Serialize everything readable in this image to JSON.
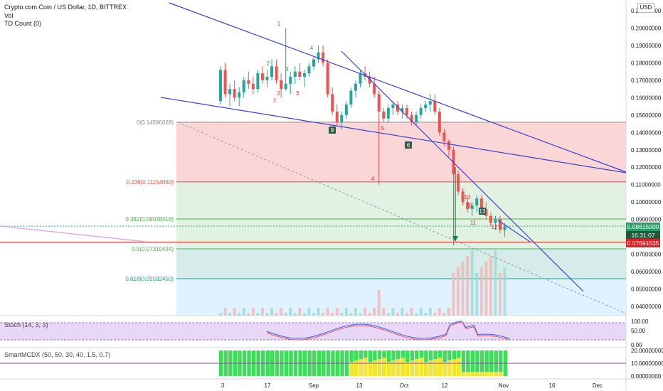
{
  "header": {
    "title": "Crypto.com Coin / US Dollar, 1D, BITTREX",
    "vol_label": "Vol",
    "td_label": "TD Count (0)"
  },
  "currency_badge": "USD",
  "price_axis": {
    "ticks": [
      "0.21000000",
      "0.20000000",
      "0.19000000",
      "0.18000000",
      "0.17000000",
      "0.16000000",
      "0.15000000",
      "0.14000000",
      "0.13000000",
      "0.12000000",
      "0.11000000",
      "0.10000000",
      "0.09000000",
      "0.07000000",
      "0.06000000",
      "0.05000000",
      "0.04000000"
    ],
    "tick_values": [
      0.21,
      0.2,
      0.19,
      0.18,
      0.17,
      0.16,
      0.15,
      0.14,
      0.13,
      0.12,
      0.11,
      0.1,
      0.09,
      0.07,
      0.06,
      0.05,
      0.04
    ],
    "current_price": "0.08615000",
    "countdown": "16:31:07",
    "alert_price": "0.07691535"
  },
  "time_axis": {
    "labels": [
      "3",
      "17",
      "Sep",
      "13",
      "Oct",
      "12",
      "Nov",
      "16",
      "Dec"
    ]
  },
  "fib_levels": [
    {
      "label": "0(0.14590028)",
      "value": 0.14590028
    },
    {
      "label": "0.236(0.11154060)",
      "value": 0.1115406
    },
    {
      "label": "0.382(0.09028418)",
      "value": 0.09028418
    },
    {
      "label": "0.5(0.07310434)",
      "value": 0.07310434
    },
    {
      "label": "0.618(0.05592450)",
      "value": 0.0559245
    }
  ],
  "td_marks": [
    {
      "text": "1",
      "color": "green"
    },
    {
      "text": "2",
      "color": "green"
    },
    {
      "text": "3",
      "color": "green"
    },
    {
      "text": "4",
      "color": "green"
    },
    {
      "text": "1",
      "color": "red"
    },
    {
      "text": "2",
      "color": "red"
    },
    {
      "text": "3",
      "color": "red"
    },
    {
      "text": "4",
      "color": "red"
    },
    {
      "text": "5",
      "color": "red"
    },
    {
      "text": "6",
      "color": "dark"
    },
    {
      "text": "9",
      "color": "dark"
    },
    {
      "text": "8",
      "color": "red"
    },
    {
      "text": "10",
      "color": "red"
    },
    {
      "text": "11",
      "color": "red"
    },
    {
      "text": "12",
      "color": "red"
    },
    {
      "text": "13",
      "color": "dark"
    }
  ],
  "stoch": {
    "label": "Stoch (14, 3, 3)",
    "ticks": [
      "100.00",
      "50.00",
      "0.00"
    ]
  },
  "smartmcdx": {
    "label": "SmartMCDX (50, 50, 30, 40, 1.5, 0.7)",
    "ticks": [
      "20.00000000",
      "10.00000000",
      "0.00000000"
    ]
  },
  "colors": {
    "up": "#26a69a",
    "down": "#ef5350",
    "trendline": "#3f3fd6",
    "fib_red": "#f9d0cf",
    "fib_green": "#dceedd",
    "fib_teal": "#cfe9e6",
    "fib_blue": "#dbeeff",
    "alert": "#e02020"
  },
  "chart_data": {
    "type": "candlestick",
    "period": "1D",
    "ylim": [
      0.034,
      0.215
    ],
    "series": [
      {
        "values": [
          [
            0.158,
            0.178,
            0.156,
            0.176
          ],
          [
            0.176,
            0.18,
            0.16,
            0.162
          ],
          [
            0.162,
            0.168,
            0.155,
            0.165
          ],
          [
            0.165,
            0.17,
            0.158,
            0.16
          ],
          [
            0.16,
            0.166,
            0.155,
            0.163
          ],
          [
            0.163,
            0.172,
            0.16,
            0.17
          ],
          [
            0.17,
            0.175,
            0.165,
            0.168
          ],
          [
            0.168,
            0.172,
            0.162,
            0.165
          ],
          [
            0.165,
            0.176,
            0.163,
            0.174
          ],
          [
            0.174,
            0.178,
            0.168,
            0.17
          ],
          [
            0.17,
            0.176,
            0.166,
            0.172
          ],
          [
            0.172,
            0.182,
            0.17,
            0.178
          ],
          [
            0.178,
            0.182,
            0.168,
            0.17
          ],
          [
            0.17,
            0.174,
            0.16,
            0.165
          ],
          [
            0.165,
            0.2,
            0.164,
            0.168
          ],
          [
            0.168,
            0.175,
            0.162,
            0.172
          ],
          [
            0.172,
            0.178,
            0.168,
            0.175
          ],
          [
            0.175,
            0.18,
            0.17,
            0.172
          ],
          [
            0.172,
            0.176,
            0.166,
            0.174
          ],
          [
            0.174,
            0.18,
            0.172,
            0.178
          ],
          [
            0.178,
            0.184,
            0.176,
            0.182
          ],
          [
            0.182,
            0.19,
            0.18,
            0.186
          ],
          [
            0.186,
            0.19,
            0.178,
            0.18
          ],
          [
            0.18,
            0.182,
            0.16,
            0.162
          ],
          [
            0.162,
            0.166,
            0.15,
            0.152
          ],
          [
            0.152,
            0.156,
            0.144,
            0.146
          ],
          [
            0.146,
            0.152,
            0.142,
            0.15
          ],
          [
            0.15,
            0.158,
            0.148,
            0.156
          ],
          [
            0.156,
            0.166,
            0.154,
            0.164
          ],
          [
            0.164,
            0.17,
            0.16,
            0.168
          ],
          [
            0.168,
            0.176,
            0.166,
            0.174
          ],
          [
            0.174,
            0.178,
            0.17,
            0.172
          ],
          [
            0.172,
            0.175,
            0.166,
            0.168
          ],
          [
            0.168,
            0.172,
            0.16,
            0.162
          ],
          [
            0.162,
            0.164,
            0.11,
            0.152
          ],
          [
            0.152,
            0.154,
            0.146,
            0.148
          ],
          [
            0.148,
            0.156,
            0.146,
            0.154
          ],
          [
            0.154,
            0.158,
            0.15,
            0.156
          ],
          [
            0.156,
            0.158,
            0.15,
            0.152
          ],
          [
            0.152,
            0.156,
            0.148,
            0.154
          ],
          [
            0.154,
            0.156,
            0.148,
            0.15
          ],
          [
            0.15,
            0.152,
            0.144,
            0.146
          ],
          [
            0.146,
            0.152,
            0.144,
            0.15
          ],
          [
            0.15,
            0.156,
            0.148,
            0.154
          ],
          [
            0.154,
            0.158,
            0.152,
            0.156
          ],
          [
            0.156,
            0.162,
            0.152,
            0.158
          ],
          [
            0.158,
            0.162,
            0.15,
            0.152
          ],
          [
            0.152,
            0.154,
            0.138,
            0.14
          ],
          [
            0.14,
            0.142,
            0.132,
            0.135
          ],
          [
            0.135,
            0.136,
            0.126,
            0.13
          ],
          [
            0.13,
            0.132,
            0.075,
            0.116
          ],
          [
            0.116,
            0.118,
            0.104,
            0.106
          ],
          [
            0.106,
            0.108,
            0.098,
            0.1
          ],
          [
            0.1,
            0.102,
            0.094,
            0.096
          ],
          [
            0.096,
            0.1,
            0.092,
            0.098
          ],
          [
            0.098,
            0.104,
            0.094,
            0.102
          ],
          [
            0.102,
            0.104,
            0.094,
            0.096
          ],
          [
            0.096,
            0.1,
            0.09,
            0.092
          ],
          [
            0.092,
            0.094,
            0.086,
            0.088
          ],
          [
            0.088,
            0.092,
            0.084,
            0.09
          ],
          [
            0.09,
            0.092,
            0.082,
            0.084
          ],
          [
            0.084,
            0.088,
            0.08,
            0.086
          ]
        ]
      }
    ]
  }
}
